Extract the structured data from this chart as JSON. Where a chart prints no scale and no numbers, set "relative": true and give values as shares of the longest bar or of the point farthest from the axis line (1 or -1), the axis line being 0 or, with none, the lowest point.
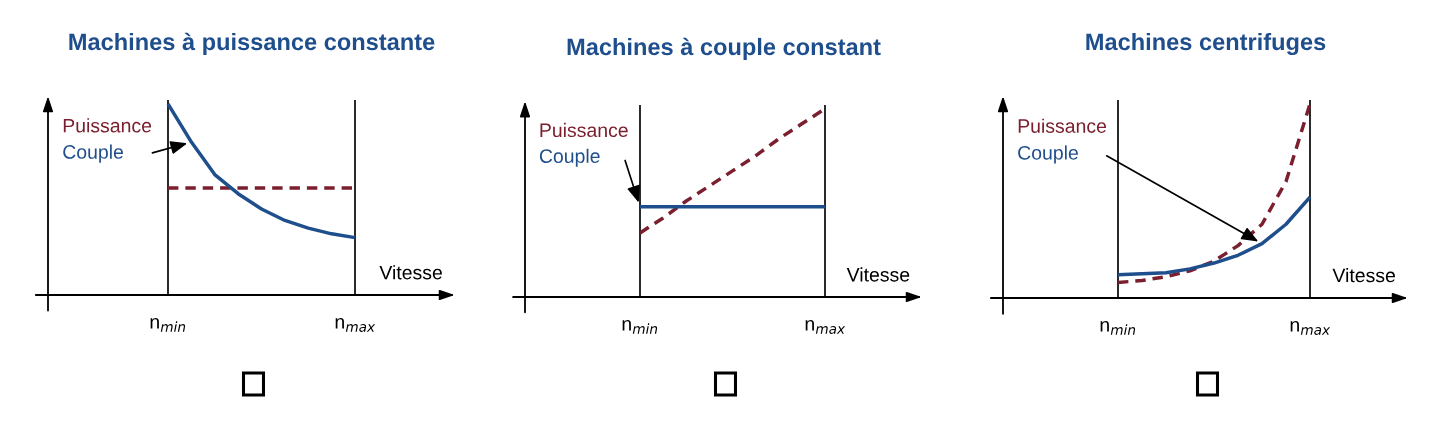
{
  "chart_data": [
    {
      "type": "line",
      "title": "Machines à puissance constante",
      "xlabel": "Vitesse",
      "relative": true,
      "legend": false,
      "grid": false,
      "categories": [
        "n$_{min}$",
        null,
        null,
        null,
        null,
        null,
        null,
        null,
        "n$_{max}$"
      ],
      "ref_lines": [
        {
          "axis": "x",
          "value": "n$_{min}$",
          "color": "#000000"
        },
        {
          "axis": "x",
          "value": "n$_{max}$",
          "color": "#000000"
        }
      ],
      "series": [
        {
          "name": "Puissance",
          "color": "#7b1f2e",
          "line_style": "dashed",
          "values": [
            0.56,
            0.56,
            0.56,
            0.56,
            0.56,
            0.56,
            0.56,
            0.56,
            0.56
          ]
        },
        {
          "name": "Couple",
          "color": "#1f4e8c",
          "line_style": "solid",
          "values": [
            1,
            0.8,
            0.63,
            0.53,
            0.45,
            0.39,
            0.35,
            0.32,
            0.3
          ]
        }
      ]
    },
    {
      "type": "line",
      "title": "Machines à couple constant",
      "xlabel": "Vitesse",
      "relative": true,
      "legend": false,
      "grid": false,
      "categories": [
        "n$_{min}$",
        null,
        null,
        null,
        null,
        null,
        null,
        null,
        "n$_{max}$"
      ],
      "ref_lines": [
        {
          "axis": "x",
          "value": "n$_{min}$",
          "color": "#000000"
        },
        {
          "axis": "x",
          "value": "n$_{max}$",
          "color": "#000000"
        }
      ],
      "series": [
        {
          "name": "Puissance",
          "color": "#7b1f2e",
          "line_style": "dashed",
          "values": [
            0.34,
            0.42,
            0.51,
            0.59,
            0.67,
            0.75,
            0.84,
            0.92,
            1
          ]
        },
        {
          "name": "Couple",
          "color": "#1f4e8c",
          "line_style": "solid",
          "values": [
            0.48,
            0.48,
            0.48,
            0.48,
            0.48,
            0.48,
            0.48,
            0.48,
            0.48
          ]
        }
      ]
    },
    {
      "type": "line",
      "title": "Machines centrifuges",
      "xlabel": "Vitesse",
      "relative": true,
      "legend": false,
      "grid": false,
      "categories": [
        "n$_{min}$",
        null,
        null,
        null,
        null,
        null,
        null,
        null,
        "n$_{max}$"
      ],
      "ref_lines": [
        {
          "axis": "x",
          "value": "n$_{min}$",
          "color": "#000000"
        },
        {
          "axis": "x",
          "value": "n$_{max}$",
          "color": "#000000"
        }
      ],
      "series": [
        {
          "name": "Puissance",
          "color": "#7b1f2e",
          "line_style": "dashed",
          "values": [
            0.08,
            0.09,
            0.11,
            0.14,
            0.19,
            0.27,
            0.38,
            0.6,
            1
          ]
        },
        {
          "name": "Couple",
          "color": "#1f4e8c",
          "line_style": "solid",
          "values": [
            0.12,
            0.125,
            0.13,
            0.15,
            0.18,
            0.22,
            0.28,
            0.38,
            0.52
          ]
        }
      ]
    }
  ]
}
